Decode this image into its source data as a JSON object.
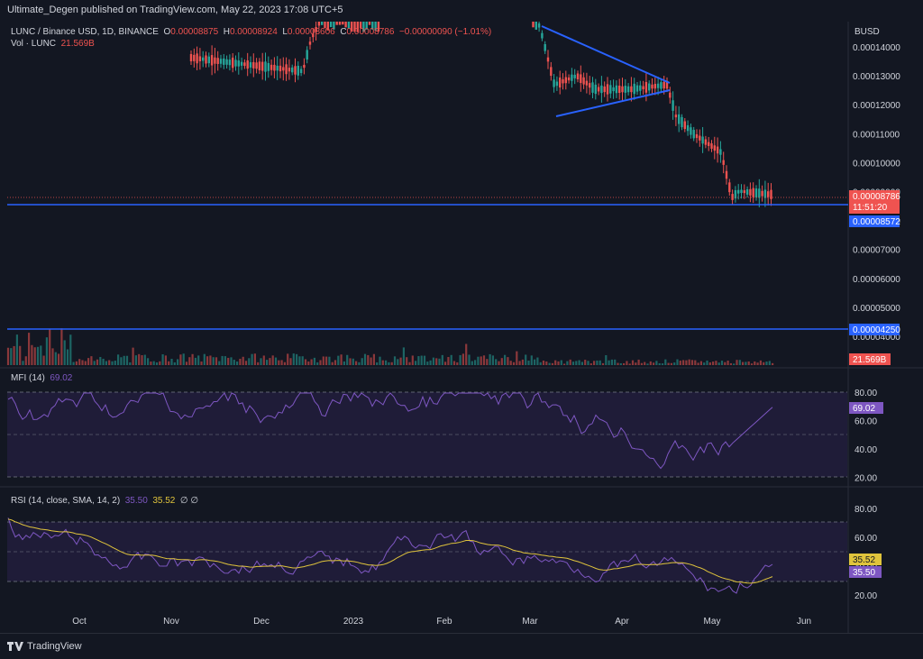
{
  "header": {
    "publisher": "Ultimate_Degen published on TradingView.com, May 22, 2023 17:08 UTC+5"
  },
  "footer": {
    "brand": "TradingView"
  },
  "legend": {
    "symbol": "LUNC / Binance USD, 1D, BINANCE",
    "o_label": "O",
    "o_val": "0.00008875",
    "h_label": "H",
    "h_val": "0.00008924",
    "l_label": "L",
    "l_val": "0.00008606",
    "c_label": "C",
    "c_val": "0.00008786",
    "change": "−0.00000090 (−1.01%)",
    "vol_label": "Vol · LUNC",
    "vol_val": "21.569B",
    "mfi_label": "MFI (14)",
    "mfi_val": "69.02",
    "rsi_label": "RSI (14, close, SMA, 14, 2)",
    "rsi_val": "35.50",
    "rsi_sma_val": "35.52",
    "rsi_extra": "∅ ∅"
  },
  "colors": {
    "bg": "#131722",
    "up": "#26a69a",
    "down": "#ef5350",
    "hline": "#2962ff",
    "rsi": "#7e57c2",
    "sma": "#e0c43c",
    "band": "#1f1c38"
  },
  "chart_data": {
    "type": "candlestick",
    "currency": "BUSD",
    "price_ticks": [
      "0.00014000",
      "0.00013000",
      "0.00012000",
      "0.00011000",
      "0.00010000",
      "0.00009000",
      "0.00008000",
      "0.00007000",
      "0.00006000",
      "0.00005000",
      "0.00004000"
    ],
    "x_ticks": [
      "Oct",
      "Nov",
      "Dec",
      "2023",
      "Feb",
      "Mar",
      "Apr",
      "May",
      "Jun"
    ],
    "last_price": "0.00008786",
    "countdown": "11:51:20",
    "support_levels": [
      "0.00008572",
      "0.00004250"
    ],
    "volume_label": "21.569B",
    "triangle": {
      "upper": [
        [
          "Mar 2",
          0.000147
        ],
        [
          "Apr 19",
          0.000128
        ]
      ],
      "lower": [
        [
          "Mar 6",
          0.000116
        ],
        [
          "Apr 19",
          0.000125
        ]
      ]
    },
    "mfi": {
      "ticks": [
        "80.00",
        "60.00",
        "40.00",
        "20.00"
      ],
      "current": "69.02",
      "levels": [
        80,
        20
      ]
    },
    "rsi": {
      "ticks": [
        "80.00",
        "60.00",
        "40.00",
        "20.00"
      ],
      "current": "35.50",
      "sma": "35.52",
      "levels": [
        70,
        30
      ]
    }
  }
}
